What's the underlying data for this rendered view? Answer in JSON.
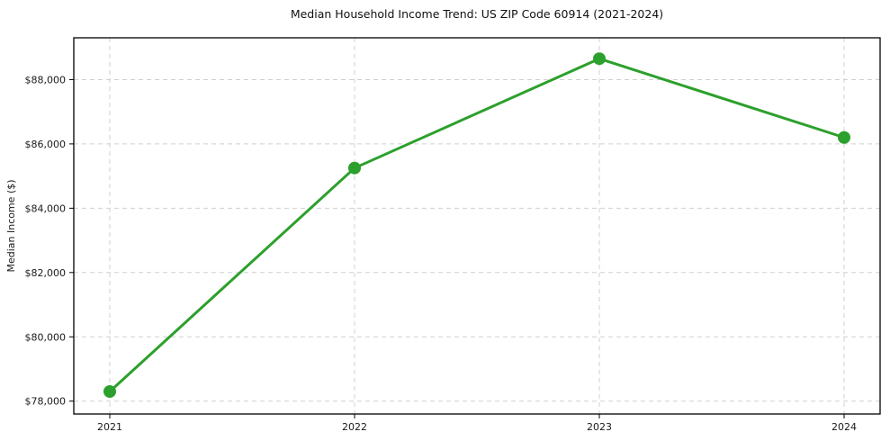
{
  "chart_data": {
    "type": "line",
    "title": "Median Household Income Trend: US ZIP Code 60914 (2021-2024)",
    "xlabel": "",
    "ylabel": "Median Income ($)",
    "categories": [
      "2021",
      "2022",
      "2023",
      "2024"
    ],
    "series": [
      {
        "name": "Median Household Income",
        "values": [
          78300,
          85250,
          88650,
          86200
        ],
        "color": "#2ca02c",
        "marker": "circle",
        "marker_radius": 7,
        "line_width": 3
      }
    ],
    "ylim": [
      77600,
      89300
    ],
    "yticks": {
      "values": [
        78000,
        80000,
        82000,
        84000,
        86000,
        88000
      ],
      "labels": [
        "$78,000",
        "$80,000",
        "$82,000",
        "$84,000",
        "$86,000",
        "$88,000"
      ]
    },
    "grid": true,
    "grid_color": "#d0d0d0",
    "grid_style": "dashed",
    "legend_position": "none",
    "background_color": "#ffffff",
    "spine_color": "#000000",
    "tick_color": "#000000",
    "text_color": "#1a1a1a"
  }
}
